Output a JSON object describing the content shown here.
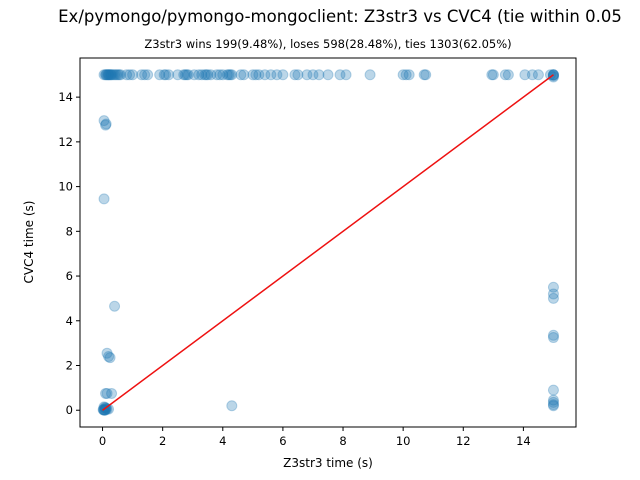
{
  "chart_data": {
    "type": "scatter",
    "title": "Ex/pymongo/pymongo-mongoclient: Z3str3 vs CVC4 (tie within 0.05",
    "subtitle": "Z3str3 wins 199(9.48%), loses 598(28.48%), ties 1303(62.05%)",
    "xlabel": "Z3str3 time (s)",
    "ylabel": "CVC4 time (s)",
    "xlim": [
      -0.75,
      15.75
    ],
    "ylim": [
      -0.75,
      15.75
    ],
    "x_ticks": [
      0,
      2,
      4,
      6,
      8,
      10,
      12,
      14
    ],
    "y_ticks": [
      0,
      2,
      4,
      6,
      8,
      10,
      12,
      14
    ],
    "grid": false,
    "point_color": "#1f77b4",
    "point_alpha": 0.3,
    "diagonal": {
      "from": [
        0,
        0
      ],
      "to": [
        15,
        15
      ],
      "color": "#ee1111"
    },
    "series": [
      {
        "x": [
          0.05,
          0.1,
          0.12,
          0.15,
          0.18,
          0.2,
          0.22,
          0.25,
          0.28,
          0.3,
          0.35,
          0.4,
          0.45,
          0.5,
          0.55,
          0.6,
          0.8,
          0.9,
          1.0,
          1.3,
          1.4,
          1.5,
          1.9,
          2.05,
          2.1,
          2.2,
          2.5,
          2.7,
          2.75,
          2.8,
          2.85,
          3.05,
          3.2,
          3.3,
          3.4,
          3.45,
          3.5,
          3.6,
          3.8,
          3.9,
          4.0,
          4.15,
          4.2,
          4.25,
          4.3,
          4.6,
          4.7,
          5.0,
          5.1,
          5.2,
          5.4,
          5.6,
          5.8,
          6.0,
          6.4,
          6.5,
          6.8,
          7.0,
          7.2,
          7.5,
          7.9,
          8.1,
          8.9,
          10.0,
          10.1,
          10.2,
          10.7,
          10.75,
          12.95,
          13.0,
          13.4,
          13.5,
          14.05,
          14.3,
          14.5,
          14.9,
          15.0,
          0.05,
          0.1,
          0.12,
          0.05,
          0.15,
          0.2,
          0.25,
          0.1,
          0.15,
          0.3,
          0.05,
          0.08,
          0.1,
          0.12,
          0.15,
          0.2,
          0.02,
          0.03,
          0.05,
          0.06,
          0.08,
          0.1,
          0.4,
          4.3,
          15.0,
          15.0,
          15.0,
          15.0,
          15.0,
          15.0,
          15.0,
          15.0,
          15.0,
          15.0,
          15.0,
          15.0,
          15.0,
          15.0
        ],
        "y": [
          15.0,
          15.0,
          15.0,
          15.0,
          15.0,
          15.0,
          15.0,
          15.0,
          15.0,
          15.0,
          15.0,
          15.0,
          15.0,
          15.0,
          15.0,
          15.0,
          15.0,
          15.0,
          15.0,
          15.0,
          15.0,
          15.0,
          15.0,
          15.0,
          15.0,
          15.0,
          15.0,
          15.0,
          15.0,
          15.0,
          15.0,
          15.0,
          15.0,
          15.0,
          15.0,
          15.0,
          15.0,
          15.0,
          15.0,
          15.0,
          15.0,
          15.0,
          15.0,
          15.0,
          15.0,
          15.0,
          15.0,
          15.0,
          15.0,
          15.0,
          15.0,
          15.0,
          15.0,
          15.0,
          15.0,
          15.0,
          15.0,
          15.0,
          15.0,
          15.0,
          15.0,
          15.0,
          15.0,
          15.0,
          15.0,
          15.0,
          15.0,
          15.0,
          15.0,
          15.0,
          15.0,
          15.0,
          15.0,
          15.0,
          15.0,
          15.0,
          15.0,
          12.95,
          12.75,
          12.8,
          9.45,
          2.55,
          2.4,
          2.35,
          0.75,
          0.75,
          0.75,
          0.15,
          0.12,
          0.1,
          0.08,
          0.05,
          0.05,
          0.02,
          0.03,
          0.0,
          0.01,
          0.0,
          0.02,
          4.65,
          0.2,
          5.5,
          5.2,
          5.0,
          3.35,
          3.25,
          0.9,
          0.45,
          0.35,
          0.25,
          0.2,
          15.0,
          14.95,
          15.0,
          14.9
        ]
      }
    ]
  }
}
